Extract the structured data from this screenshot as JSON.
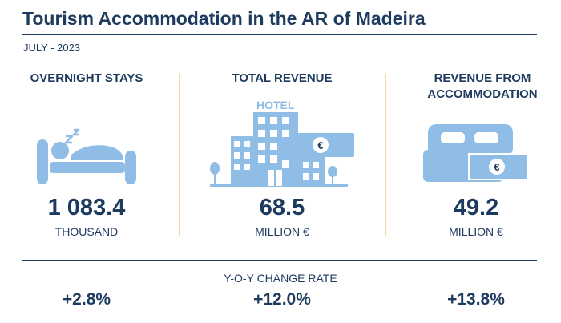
{
  "header": {
    "title": "Tourism Accommodation in the AR of Madeira",
    "period": "JULY - 2023"
  },
  "indicators": [
    {
      "label": "OVERNIGHT STAYS",
      "value": "1 083.4",
      "unit": "THOUSAND",
      "icon": "sleeping-person-icon"
    },
    {
      "label": "TOTAL REVENUE",
      "value": "68.5",
      "unit": "MILLION €",
      "icon": "hotel-icon",
      "icon_label": "HOTEL",
      "icon_badge": "€"
    },
    {
      "label": "REVENUE FROM ACCOMMODATION",
      "value": "49.2",
      "unit": "MILLION €",
      "icon": "double-bed-icon",
      "icon_badge": "€"
    }
  ],
  "yoy": {
    "title": "Y-O-Y CHANGE RATE",
    "rates": [
      "+2.8%",
      "+12.0%",
      "+13.8%"
    ]
  },
  "colors": {
    "primary": "#1d3a5f",
    "icon": "#8fbde6",
    "separator": "#f3d9a0"
  }
}
